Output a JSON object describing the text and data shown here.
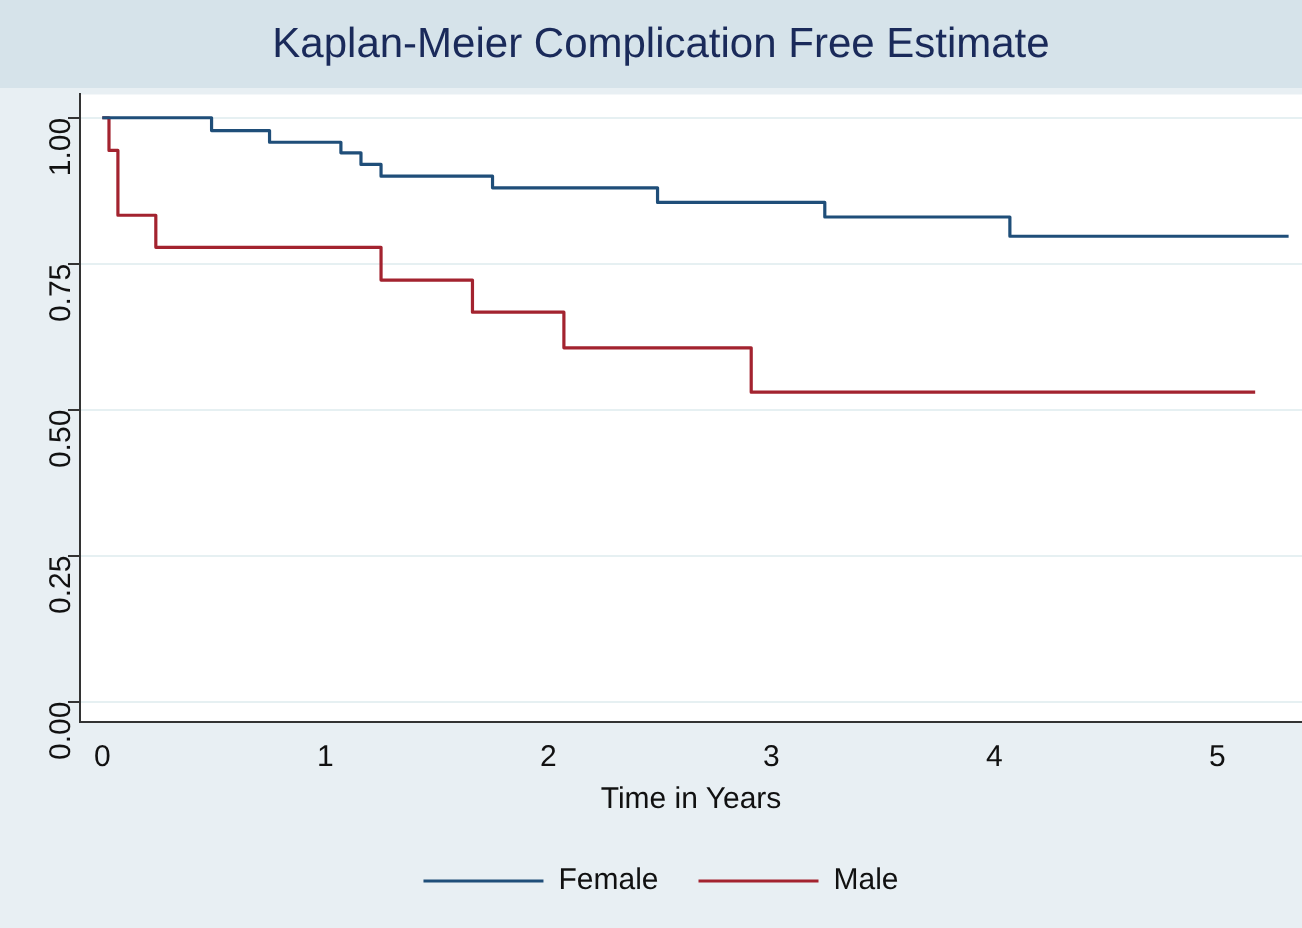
{
  "chart_data": {
    "type": "step",
    "title": "Kaplan-Meier Complication Free Estimate",
    "xlabel": "Time in Years",
    "xlim": [
      -0.1,
      5.38
    ],
    "xticks": [
      0,
      1,
      2,
      3,
      4,
      5
    ],
    "ylim": [
      -0.035,
      1.04
    ],
    "yticks": [
      {
        "value": 0,
        "label": "0.00"
      },
      {
        "value": 0.25,
        "label": "0.25"
      },
      {
        "value": 0.5,
        "label": "0.50"
      },
      {
        "value": 0.75,
        "label": "0.75"
      },
      {
        "value": 1,
        "label": "1.00"
      }
    ],
    "grid": "y",
    "legend": "bottom",
    "marker": "none",
    "line_style": "solid",
    "series": [
      {
        "name": "Female",
        "color": "#1f4e79",
        "x": [
          0,
          0.49,
          0.75,
          1.07,
          1.16,
          1.25,
          1.75,
          2.49,
          3.24,
          4.07,
          5.32
        ],
        "values": [
          1,
          0.978,
          0.958,
          0.94,
          0.92,
          0.9,
          0.88,
          0.855,
          0.83,
          0.797,
          0.797
        ]
      },
      {
        "name": "Male",
        "color": "#a3232f",
        "x": [
          0,
          0.03,
          0.07,
          0.24,
          1.25,
          1.66,
          2.07,
          2.91,
          5.17
        ],
        "values": [
          1,
          0.944,
          0.833,
          0.778,
          0.722,
          0.667,
          0.606,
          0.53,
          0.53
        ]
      }
    ]
  }
}
